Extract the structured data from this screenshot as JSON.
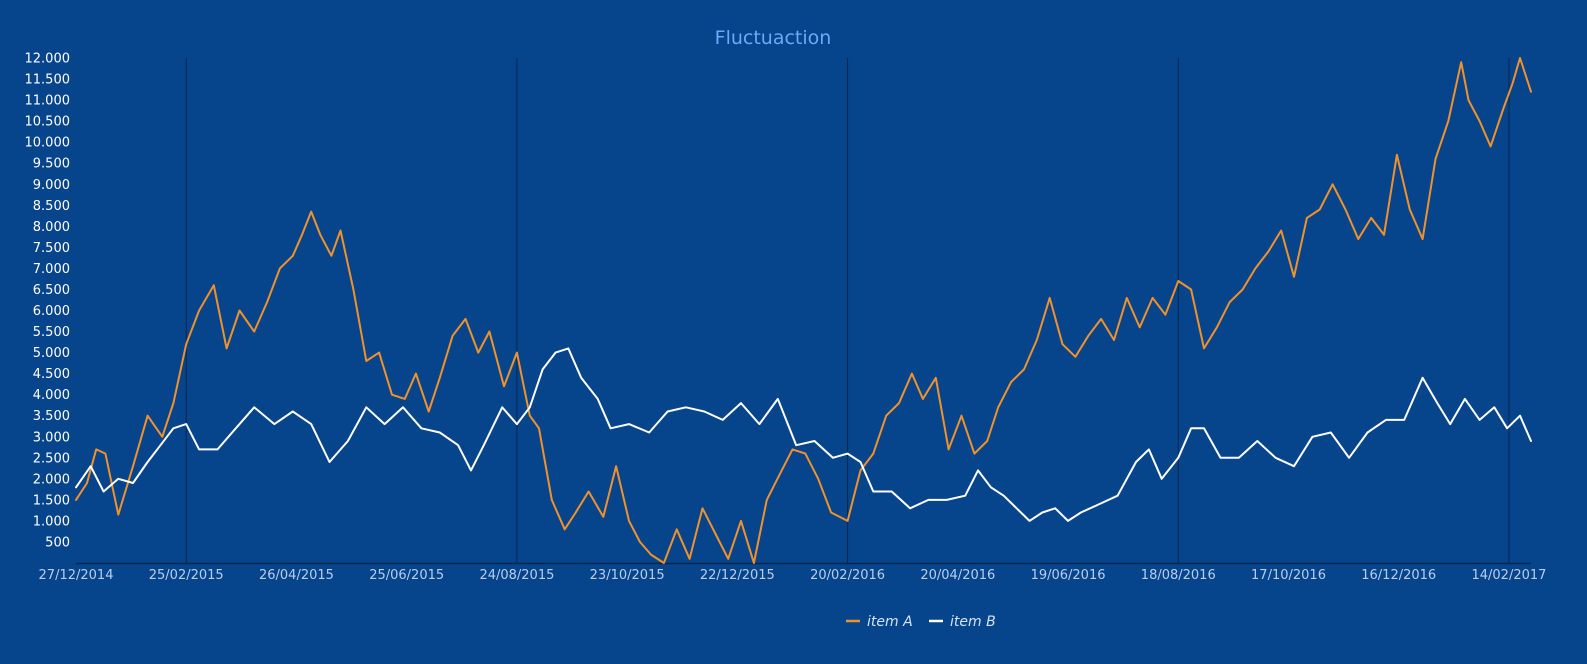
{
  "chart_data": {
    "type": "line",
    "title": "Fluctuaction",
    "xlabel": "",
    "ylabel": "",
    "x_range": [
      "27/12/2014",
      "26/02/2017"
    ],
    "ylim": [
      0,
      12000
    ],
    "y_ticks": [
      500,
      1000,
      1500,
      2000,
      2500,
      3000,
      3500,
      4000,
      4500,
      5000,
      5500,
      6000,
      6500,
      7000,
      7500,
      8000,
      8500,
      9000,
      9500,
      10000,
      10500,
      11000,
      11500,
      12000
    ],
    "y_tick_labels": [
      "500",
      "1.000",
      "1.500",
      "2.000",
      "2.500",
      "3.000",
      "3.500",
      "4.000",
      "4.500",
      "5.000",
      "5.500",
      "6.000",
      "6.500",
      "7.000",
      "7.500",
      "8.000",
      "8.500",
      "9.000",
      "9.500",
      "10.000",
      "10.500",
      "11.000",
      "11.500",
      "12.000"
    ],
    "x_tick_labels": [
      "27/12/2014",
      "25/02/2015",
      "26/04/2015",
      "25/06/2015",
      "24/08/2015",
      "23/10/2015",
      "22/12/2015",
      "20/02/2016",
      "20/04/2016",
      "19/06/2016",
      "18/08/2016",
      "17/10/2016",
      "16/12/2016",
      "14/02/2017"
    ],
    "vertical_gridlines_at": [
      "25/02/2015",
      "24/08/2015",
      "20/02/2016",
      "18/08/2016",
      "14/02/2017"
    ],
    "legend_position": "bottom-center",
    "colors": {
      "background": "#06458c",
      "title": "#6fa8f5",
      "axis": "#07254d",
      "grid": "#07254d"
    },
    "series": [
      {
        "name": "item A",
        "color": "#f0922c",
        "points": [
          [
            "2014-12-27",
            1500
          ],
          [
            "2015-01-02",
            1900
          ],
          [
            "2015-01-07",
            2700
          ],
          [
            "2015-01-12",
            2600
          ],
          [
            "2015-01-19",
            1150
          ],
          [
            "2015-01-27",
            2300
          ],
          [
            "2015-02-04",
            3500
          ],
          [
            "2015-02-12",
            3000
          ],
          [
            "2015-02-18",
            3800
          ],
          [
            "2015-02-25",
            5200
          ],
          [
            "2015-03-04",
            6000
          ],
          [
            "2015-03-12",
            6600
          ],
          [
            "2015-03-19",
            5100
          ],
          [
            "2015-03-26",
            6000
          ],
          [
            "2015-04-03",
            5500
          ],
          [
            "2015-04-10",
            6200
          ],
          [
            "2015-04-17",
            7000
          ],
          [
            "2015-04-24",
            7300
          ],
          [
            "2015-04-29",
            7800
          ],
          [
            "2015-05-04",
            8350
          ],
          [
            "2015-05-09",
            7800
          ],
          [
            "2015-05-15",
            7300
          ],
          [
            "2015-05-20",
            7900
          ],
          [
            "2015-05-27",
            6500
          ],
          [
            "2015-06-03",
            4800
          ],
          [
            "2015-06-10",
            5000
          ],
          [
            "2015-06-17",
            4000
          ],
          [
            "2015-06-24",
            3900
          ],
          [
            "2015-06-30",
            4500
          ],
          [
            "2015-07-07",
            3600
          ],
          [
            "2015-07-13",
            4400
          ],
          [
            "2015-07-20",
            5400
          ],
          [
            "2015-07-27",
            5800
          ],
          [
            "2015-08-03",
            5000
          ],
          [
            "2015-08-09",
            5500
          ],
          [
            "2015-08-17",
            4200
          ],
          [
            "2015-08-24",
            5000
          ],
          [
            "2015-08-31",
            3500
          ],
          [
            "2015-09-05",
            3200
          ],
          [
            "2015-09-12",
            1500
          ],
          [
            "2015-09-19",
            800
          ],
          [
            "2015-09-25",
            1200
          ],
          [
            "2015-10-02",
            1700
          ],
          [
            "2015-10-10",
            1100
          ],
          [
            "2015-10-17",
            2300
          ],
          [
            "2015-10-24",
            1000
          ],
          [
            "2015-10-30",
            500
          ],
          [
            "2015-11-05",
            200
          ],
          [
            "2015-11-12",
            0
          ],
          [
            "2015-11-19",
            800
          ],
          [
            "2015-11-26",
            100
          ],
          [
            "2015-12-03",
            1300
          ],
          [
            "2015-12-10",
            700
          ],
          [
            "2015-12-17",
            100
          ],
          [
            "2015-12-24",
            1000
          ],
          [
            "2015-12-31",
            0
          ],
          [
            "2016-01-07",
            1500
          ],
          [
            "2016-01-14",
            2100
          ],
          [
            "2016-01-21",
            2700
          ],
          [
            "2016-01-28",
            2600
          ],
          [
            "2016-02-04",
            2000
          ],
          [
            "2016-02-11",
            1200
          ],
          [
            "2016-02-20",
            1000
          ],
          [
            "2016-02-27",
            2200
          ],
          [
            "2016-03-05",
            2600
          ],
          [
            "2016-03-12",
            3500
          ],
          [
            "2016-03-19",
            3800
          ],
          [
            "2016-03-26",
            4500
          ],
          [
            "2016-04-01",
            3900
          ],
          [
            "2016-04-08",
            4400
          ],
          [
            "2016-04-15",
            2700
          ],
          [
            "2016-04-22",
            3500
          ],
          [
            "2016-04-29",
            2600
          ],
          [
            "2016-05-06",
            2900
          ],
          [
            "2016-05-12",
            3700
          ],
          [
            "2016-05-19",
            4300
          ],
          [
            "2016-05-26",
            4600
          ],
          [
            "2016-06-02",
            5300
          ],
          [
            "2016-06-09",
            6300
          ],
          [
            "2016-06-16",
            5200
          ],
          [
            "2016-06-23",
            4900
          ],
          [
            "2016-06-30",
            5400
          ],
          [
            "2016-07-07",
            5800
          ],
          [
            "2016-07-14",
            5300
          ],
          [
            "2016-07-21",
            6300
          ],
          [
            "2016-07-28",
            5600
          ],
          [
            "2016-08-04",
            6300
          ],
          [
            "2016-08-11",
            5900
          ],
          [
            "2016-08-18",
            6700
          ],
          [
            "2016-08-25",
            6500
          ],
          [
            "2016-09-01",
            5100
          ],
          [
            "2016-09-08",
            5600
          ],
          [
            "2016-09-15",
            6200
          ],
          [
            "2016-09-22",
            6500
          ],
          [
            "2016-09-29",
            7000
          ],
          [
            "2016-10-06",
            7400
          ],
          [
            "2016-10-13",
            7900
          ],
          [
            "2016-10-20",
            6800
          ],
          [
            "2016-10-27",
            8200
          ],
          [
            "2016-11-03",
            8400
          ],
          [
            "2016-11-10",
            9000
          ],
          [
            "2016-11-17",
            8400
          ],
          [
            "2016-11-24",
            7700
          ],
          [
            "2016-12-01",
            8200
          ],
          [
            "2016-12-08",
            7800
          ],
          [
            "2016-12-15",
            9700
          ],
          [
            "2016-12-22",
            8400
          ],
          [
            "2016-12-29",
            7700
          ],
          [
            "2017-01-05",
            9600
          ],
          [
            "2017-01-12",
            10500
          ],
          [
            "2017-01-19",
            11900
          ],
          [
            "2017-01-23",
            11000
          ],
          [
            "2017-01-29",
            10500
          ],
          [
            "2017-02-04",
            9900
          ],
          [
            "2017-02-11",
            10800
          ],
          [
            "2017-02-16",
            11400
          ],
          [
            "2017-02-20",
            12000
          ],
          [
            "2017-02-26",
            11200
          ]
        ]
      },
      {
        "name": "item B",
        "color": "#ffffff",
        "points": [
          [
            "2014-12-27",
            1800
          ],
          [
            "2015-01-04",
            2300
          ],
          [
            "2015-01-11",
            1700
          ],
          [
            "2015-01-19",
            2000
          ],
          [
            "2015-01-27",
            1900
          ],
          [
            "2015-02-04",
            2400
          ],
          [
            "2015-02-11",
            2800
          ],
          [
            "2015-02-18",
            3200
          ],
          [
            "2015-02-25",
            3300
          ],
          [
            "2015-03-04",
            2700
          ],
          [
            "2015-03-14",
            2700
          ],
          [
            "2015-03-24",
            3200
          ],
          [
            "2015-04-03",
            3700
          ],
          [
            "2015-04-14",
            3300
          ],
          [
            "2015-04-24",
            3600
          ],
          [
            "2015-05-04",
            3300
          ],
          [
            "2015-05-14",
            2400
          ],
          [
            "2015-05-24",
            2900
          ],
          [
            "2015-06-03",
            3700
          ],
          [
            "2015-06-13",
            3300
          ],
          [
            "2015-06-23",
            3700
          ],
          [
            "2015-07-03",
            3200
          ],
          [
            "2015-07-13",
            3100
          ],
          [
            "2015-07-23",
            2800
          ],
          [
            "2015-07-30",
            2200
          ],
          [
            "2015-08-06",
            2800
          ],
          [
            "2015-08-16",
            3700
          ],
          [
            "2015-08-24",
            3300
          ],
          [
            "2015-08-31",
            3700
          ],
          [
            "2015-09-07",
            4600
          ],
          [
            "2015-09-14",
            5000
          ],
          [
            "2015-09-21",
            5100
          ],
          [
            "2015-09-28",
            4400
          ],
          [
            "2015-10-07",
            3900
          ],
          [
            "2015-10-14",
            3200
          ],
          [
            "2015-10-24",
            3300
          ],
          [
            "2015-11-04",
            3100
          ],
          [
            "2015-11-14",
            3600
          ],
          [
            "2015-11-24",
            3700
          ],
          [
            "2015-12-04",
            3600
          ],
          [
            "2015-12-14",
            3400
          ],
          [
            "2015-12-24",
            3800
          ],
          [
            "2016-01-03",
            3300
          ],
          [
            "2016-01-13",
            3900
          ],
          [
            "2016-01-23",
            2800
          ],
          [
            "2016-02-02",
            2900
          ],
          [
            "2016-02-12",
            2500
          ],
          [
            "2016-02-20",
            2600
          ],
          [
            "2016-02-27",
            2400
          ],
          [
            "2016-03-05",
            1700
          ],
          [
            "2016-03-15",
            1700
          ],
          [
            "2016-03-25",
            1300
          ],
          [
            "2016-04-04",
            1500
          ],
          [
            "2016-04-14",
            1500
          ],
          [
            "2016-04-24",
            1600
          ],
          [
            "2016-05-01",
            2200
          ],
          [
            "2016-05-08",
            1800
          ],
          [
            "2016-05-15",
            1600
          ],
          [
            "2016-05-22",
            1300
          ],
          [
            "2016-05-29",
            1000
          ],
          [
            "2016-06-05",
            1200
          ],
          [
            "2016-06-12",
            1300
          ],
          [
            "2016-06-19",
            1000
          ],
          [
            "2016-06-26",
            1200
          ],
          [
            "2016-07-06",
            1400
          ],
          [
            "2016-07-16",
            1600
          ],
          [
            "2016-07-26",
            2400
          ],
          [
            "2016-08-02",
            2700
          ],
          [
            "2016-08-09",
            2000
          ],
          [
            "2016-08-18",
            2500
          ],
          [
            "2016-08-25",
            3200
          ],
          [
            "2016-09-01",
            3200
          ],
          [
            "2016-09-10",
            2500
          ],
          [
            "2016-09-20",
            2500
          ],
          [
            "2016-09-30",
            2900
          ],
          [
            "2016-10-10",
            2500
          ],
          [
            "2016-10-20",
            2300
          ],
          [
            "2016-10-30",
            3000
          ],
          [
            "2016-11-09",
            3100
          ],
          [
            "2016-11-19",
            2500
          ],
          [
            "2016-11-29",
            3100
          ],
          [
            "2016-12-09",
            3400
          ],
          [
            "2016-12-19",
            3400
          ],
          [
            "2016-12-29",
            4400
          ],
          [
            "2017-01-06",
            3800
          ],
          [
            "2017-01-13",
            3300
          ],
          [
            "2017-01-21",
            3900
          ],
          [
            "2017-01-29",
            3400
          ],
          [
            "2017-02-06",
            3700
          ],
          [
            "2017-02-13",
            3200
          ],
          [
            "2017-02-20",
            3500
          ],
          [
            "2017-02-26",
            2900
          ]
        ]
      }
    ]
  }
}
